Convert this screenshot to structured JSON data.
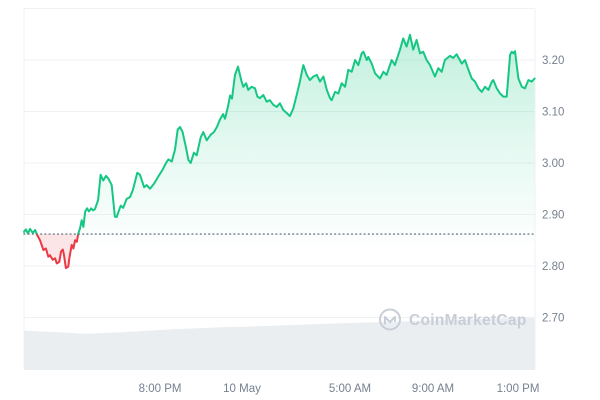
{
  "watermark": {
    "text": "CoinMarketCap",
    "color": "#c8cdd7"
  },
  "chart_data": {
    "type": "area",
    "title": "",
    "legend": "none",
    "grid": "horizontal",
    "colors": {
      "up": "#16c784",
      "down": "#ea3943",
      "grid": "#eff1f4",
      "axis_text": "#76808f",
      "volume_fill": "#ebeef1",
      "baseline_dots": "#6f7885"
    },
    "x_axis": {
      "range_hours": [
        0,
        24
      ],
      "labels": [
        {
          "label": "8:00 PM",
          "t": 6.39
        },
        {
          "label": "10 May",
          "t": 10.24
        },
        {
          "label": "5:00 AM",
          "t": 15.31
        },
        {
          "label": "9:00 AM",
          "t": 19.21
        },
        {
          "label": "1:00 PM",
          "t": 23.2
        }
      ]
    },
    "y_axis": {
      "range": [
        2.6,
        3.3
      ],
      "grid_step": 0.1,
      "ticks": [
        "3.20",
        "3.10",
        "3.00",
        "2.90",
        "2.80",
        "2.70"
      ],
      "side": "right"
    },
    "baseline": {
      "price": 2.862,
      "style": "dotted"
    },
    "series": [
      {
        "name": "price",
        "points": [
          [
            0,
            2.866
          ],
          [
            0.09,
            2.871
          ],
          [
            0.19,
            2.863
          ],
          [
            0.28,
            2.872
          ],
          [
            0.42,
            2.864
          ],
          [
            0.52,
            2.87
          ],
          [
            0.62,
            2.86
          ],
          [
            0.75,
            2.85
          ],
          [
            0.91,
            2.831
          ],
          [
            1.03,
            2.834
          ],
          [
            1.14,
            2.818
          ],
          [
            1.22,
            2.821
          ],
          [
            1.35,
            2.812
          ],
          [
            1.46,
            2.815
          ],
          [
            1.54,
            2.805
          ],
          [
            1.66,
            2.808
          ],
          [
            1.74,
            2.828
          ],
          [
            1.82,
            2.832
          ],
          [
            1.88,
            2.821
          ],
          [
            1.97,
            2.796
          ],
          [
            2.08,
            2.799
          ],
          [
            2.13,
            2.816
          ],
          [
            2.24,
            2.841
          ],
          [
            2.32,
            2.834
          ],
          [
            2.4,
            2.85
          ],
          [
            2.48,
            2.847
          ],
          [
            2.55,
            2.863
          ],
          [
            2.63,
            2.873
          ],
          [
            2.71,
            2.889
          ],
          [
            2.79,
            2.876
          ],
          [
            2.87,
            2.905
          ],
          [
            2.96,
            2.912
          ],
          [
            3.05,
            2.906
          ],
          [
            3.15,
            2.912
          ],
          [
            3.24,
            2.908
          ],
          [
            3.33,
            2.91
          ],
          [
            3.48,
            2.928
          ],
          [
            3.6,
            2.977
          ],
          [
            3.72,
            2.966
          ],
          [
            3.85,
            2.975
          ],
          [
            3.96,
            2.97
          ],
          [
            4.12,
            2.957
          ],
          [
            4.27,
            2.896
          ],
          [
            4.35,
            2.895
          ],
          [
            4.54,
            2.917
          ],
          [
            4.66,
            2.913
          ],
          [
            4.82,
            2.93
          ],
          [
            4.98,
            2.934
          ],
          [
            5.11,
            2.947
          ],
          [
            5.32,
            2.981
          ],
          [
            5.45,
            2.977
          ],
          [
            5.64,
            2.953
          ],
          [
            5.76,
            2.957
          ],
          [
            5.92,
            2.95
          ],
          [
            6.11,
            2.96
          ],
          [
            6.31,
            2.974
          ],
          [
            6.51,
            2.987
          ],
          [
            6.67,
            3.0
          ],
          [
            6.78,
            3.007
          ],
          [
            6.94,
            3.003
          ],
          [
            7.09,
            3.026
          ],
          [
            7.22,
            3.065
          ],
          [
            7.33,
            3.07
          ],
          [
            7.45,
            3.06
          ],
          [
            7.61,
            3.03
          ],
          [
            7.72,
            3.006
          ],
          [
            7.83,
            3.0
          ],
          [
            7.98,
            3.02
          ],
          [
            8.11,
            3.015
          ],
          [
            8.3,
            3.05
          ],
          [
            8.42,
            3.06
          ],
          [
            8.58,
            3.044
          ],
          [
            8.77,
            3.055
          ],
          [
            8.92,
            3.06
          ],
          [
            9.06,
            3.07
          ],
          [
            9.21,
            3.085
          ],
          [
            9.35,
            3.095
          ],
          [
            9.44,
            3.086
          ],
          [
            9.58,
            3.11
          ],
          [
            9.68,
            3.131
          ],
          [
            9.77,
            3.125
          ],
          [
            9.84,
            3.148
          ],
          [
            9.91,
            3.171
          ],
          [
            10.05,
            3.187
          ],
          [
            10.22,
            3.158
          ],
          [
            10.3,
            3.148
          ],
          [
            10.43,
            3.155
          ],
          [
            10.53,
            3.142
          ],
          [
            10.69,
            3.148
          ],
          [
            10.85,
            3.145
          ],
          [
            10.96,
            3.129
          ],
          [
            11.08,
            3.126
          ],
          [
            11.24,
            3.132
          ],
          [
            11.4,
            3.119
          ],
          [
            11.55,
            3.122
          ],
          [
            11.71,
            3.113
          ],
          [
            11.87,
            3.109
          ],
          [
            12.02,
            3.116
          ],
          [
            12.18,
            3.103
          ],
          [
            12.34,
            3.097
          ],
          [
            12.49,
            3.091
          ],
          [
            12.65,
            3.106
          ],
          [
            12.81,
            3.132
          ],
          [
            12.96,
            3.158
          ],
          [
            13.12,
            3.19
          ],
          [
            13.28,
            3.171
          ],
          [
            13.43,
            3.161
          ],
          [
            13.59,
            3.168
          ],
          [
            13.75,
            3.171
          ],
          [
            13.9,
            3.158
          ],
          [
            14.06,
            3.168
          ],
          [
            14.22,
            3.142
          ],
          [
            14.37,
            3.126
          ],
          [
            14.45,
            3.122
          ],
          [
            14.61,
            3.138
          ],
          [
            14.76,
            3.135
          ],
          [
            14.92,
            3.155
          ],
          [
            15.08,
            3.148
          ],
          [
            15.23,
            3.181
          ],
          [
            15.39,
            3.177
          ],
          [
            15.55,
            3.2
          ],
          [
            15.7,
            3.19
          ],
          [
            15.86,
            3.213
          ],
          [
            15.94,
            3.216
          ],
          [
            16.1,
            3.2
          ],
          [
            16.17,
            3.206
          ],
          [
            16.33,
            3.193
          ],
          [
            16.49,
            3.174
          ],
          [
            16.72,
            3.164
          ],
          [
            16.88,
            3.177
          ],
          [
            17.03,
            3.171
          ],
          [
            17.27,
            3.2
          ],
          [
            17.42,
            3.19
          ],
          [
            17.66,
            3.22
          ],
          [
            17.81,
            3.242
          ],
          [
            17.97,
            3.226
          ],
          [
            18.13,
            3.249
          ],
          [
            18.28,
            3.22
          ],
          [
            18.44,
            3.239
          ],
          [
            18.6,
            3.213
          ],
          [
            18.75,
            3.216
          ],
          [
            18.91,
            3.2
          ],
          [
            19.07,
            3.19
          ],
          [
            19.3,
            3.168
          ],
          [
            19.46,
            3.184
          ],
          [
            19.62,
            3.177
          ],
          [
            19.77,
            3.2
          ],
          [
            20.01,
            3.208
          ],
          [
            20.16,
            3.204
          ],
          [
            20.32,
            3.211
          ],
          [
            20.56,
            3.193
          ],
          [
            20.71,
            3.2
          ],
          [
            20.87,
            3.181
          ],
          [
            21.03,
            3.164
          ],
          [
            21.18,
            3.158
          ],
          [
            21.34,
            3.145
          ],
          [
            21.5,
            3.138
          ],
          [
            21.65,
            3.148
          ],
          [
            21.81,
            3.142
          ],
          [
            21.97,
            3.158
          ],
          [
            22.04,
            3.161
          ],
          [
            22.2,
            3.145
          ],
          [
            22.36,
            3.135
          ],
          [
            22.51,
            3.129
          ],
          [
            22.67,
            3.129
          ],
          [
            22.83,
            3.21
          ],
          [
            22.91,
            3.216
          ],
          [
            22.98,
            3.213
          ],
          [
            23.06,
            3.217
          ],
          [
            23.14,
            3.19
          ],
          [
            23.22,
            3.164
          ],
          [
            23.38,
            3.148
          ],
          [
            23.53,
            3.145
          ],
          [
            23.69,
            3.161
          ],
          [
            23.85,
            3.158
          ],
          [
            23.98,
            3.164
          ]
        ]
      }
    ],
    "volume_profile": [
      [
        0,
        0.757
      ],
      [
        1.5,
        0.728
      ],
      [
        2.9,
        0.699
      ],
      [
        4.7,
        0.728
      ],
      [
        5.9,
        0.757
      ],
      [
        7.1,
        0.786
      ],
      [
        8.3,
        0.806
      ],
      [
        9.4,
        0.825
      ],
      [
        10.6,
        0.835
      ],
      [
        11.8,
        0.854
      ],
      [
        13.0,
        0.874
      ],
      [
        15.3,
        0.903
      ],
      [
        17.7,
        0.932
      ],
      [
        20.0,
        0.961
      ],
      [
        22.4,
        0.99
      ],
      [
        24,
        1.0
      ]
    ]
  }
}
